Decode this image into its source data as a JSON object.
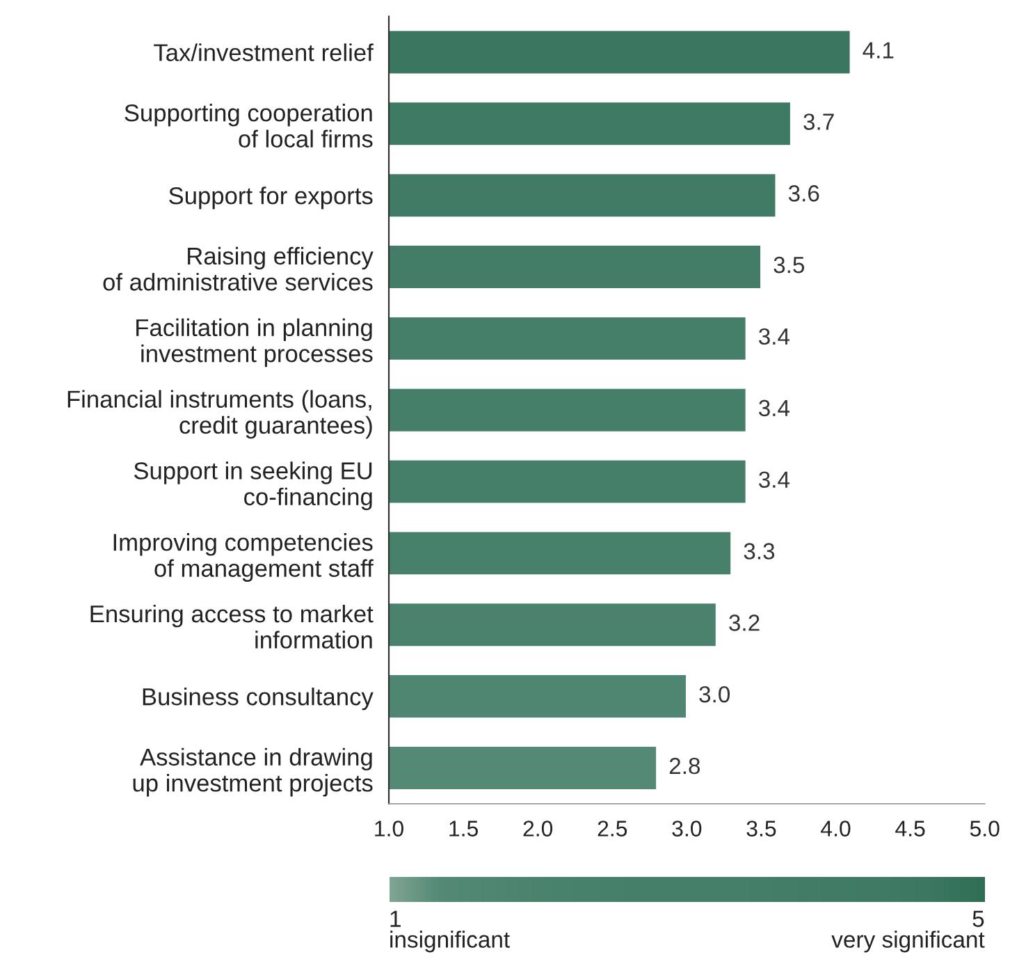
{
  "chart_data": {
    "type": "bar",
    "orientation": "horizontal",
    "categories": [
      "Tax/investment relief",
      "Supporting cooperation\nof local firms",
      "Support for exports",
      "Raising efficiency\nof administrative services",
      "Facilitation in planning\ninvestment processes",
      "Financial instruments (loans,\ncredit guarantees)",
      "Support in seeking EU\nco-financing",
      "Improving competencies\nof management staff",
      "Ensuring access to market\ninformation",
      "Business consultancy",
      "Assistance in drawing\nup investment projects"
    ],
    "values": [
      4.1,
      3.7,
      3.6,
      3.5,
      3.4,
      3.4,
      3.4,
      3.3,
      3.2,
      3.0,
      2.8
    ],
    "value_labels": [
      "4.1",
      "3.7",
      "3.6",
      "3.5",
      "3.4",
      "3.4",
      "3.4",
      "3.3",
      "3.2",
      "3.0",
      "2.8"
    ],
    "colors": [
      "#3a7660",
      "#3f7a64",
      "#417b66",
      "#437d68",
      "#457e69",
      "#457e69",
      "#457e69",
      "#47806b",
      "#4a826d",
      "#4f8671",
      "#548a75"
    ],
    "xlim": [
      1.0,
      5.0
    ],
    "xticks": [
      {
        "value": 1.0,
        "label": "1.0"
      },
      {
        "value": 1.5,
        "label": "1.5"
      },
      {
        "value": 2.0,
        "label": "2.0"
      },
      {
        "value": 2.5,
        "label": "2.5"
      },
      {
        "value": 3.0,
        "label": "3.0"
      },
      {
        "value": 3.5,
        "label": "3.5"
      },
      {
        "value": 4.0,
        "label": "4.0"
      },
      {
        "value": 4.5,
        "label": "4.5"
      },
      {
        "value": 5.0,
        "label": "5.0"
      }
    ],
    "clim": [
      1,
      5
    ],
    "cticks": [
      {
        "value": 1,
        "label": "1\ninsignificant"
      },
      {
        "value": 5,
        "label": "5\nvery significant"
      }
    ],
    "grid": false
  }
}
